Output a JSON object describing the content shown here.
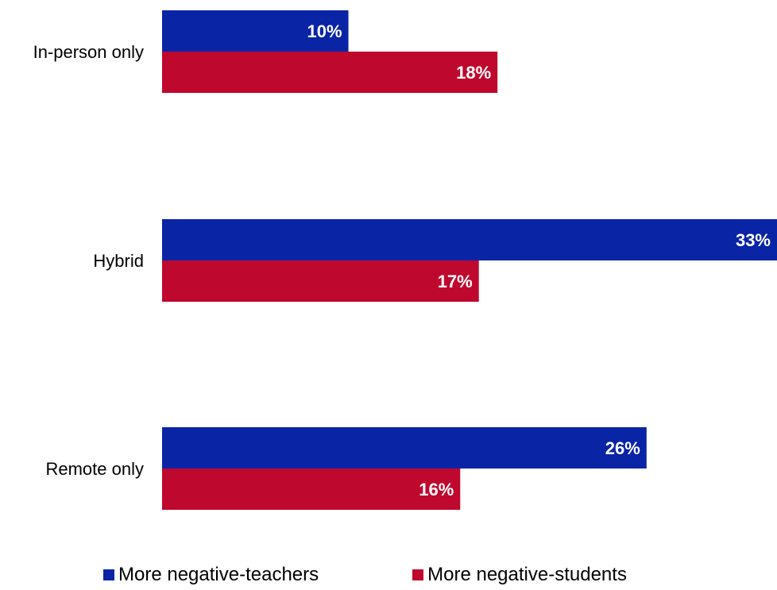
{
  "chart_data": {
    "type": "bar",
    "orientation": "horizontal",
    "categories": [
      "In-person only",
      "Hybrid",
      "Remote only"
    ],
    "series": [
      {
        "name": "More negative-teachers",
        "values": [
          10,
          33,
          26
        ],
        "labels": [
          "10%",
          "33%",
          "26%"
        ],
        "color": "#0A24A6"
      },
      {
        "name": "More negative-students",
        "values": [
          18,
          17,
          16
        ],
        "labels": [
          "18%",
          "17%",
          "16%"
        ],
        "color": "#BF082E"
      }
    ],
    "value_unit": "%",
    "xlim": [
      0,
      33
    ],
    "grid": false,
    "legend_position": "bottom"
  }
}
